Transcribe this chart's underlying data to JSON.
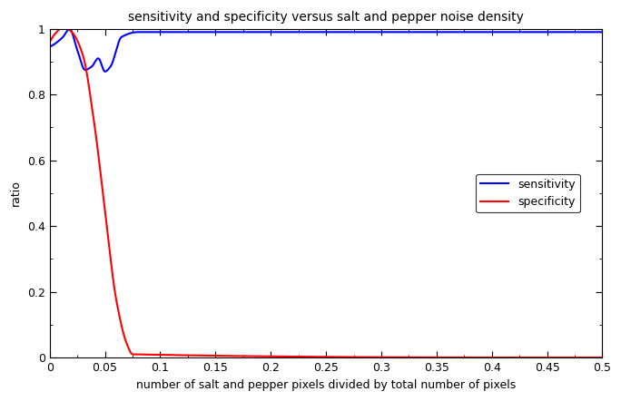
{
  "title": "sensitivity and specificity versus salt and pepper noise density",
  "xlabel": "number of salt and pepper pixels divided by total number of pixels",
  "ylabel": "ratio",
  "xlim": [
    0,
    0.5
  ],
  "ylim": [
    0,
    1.0
  ],
  "xticks": [
    0,
    0.05,
    0.1,
    0.15,
    0.2,
    0.25,
    0.3,
    0.35,
    0.4,
    0.45,
    0.5
  ],
  "yticks": [
    0,
    0.2,
    0.4,
    0.6,
    0.8,
    1.0
  ],
  "sensitivity_color": "#0000FF",
  "specificity_color": "#FF0000",
  "legend_labels": [
    "sensitivity",
    "specificity"
  ],
  "background_color": "#FFFFFF",
  "title_fontsize": 10,
  "axis_fontsize": 9,
  "tick_fontsize": 9,
  "linewidth": 1.5,
  "sens_keypoints_x": [
    0.0,
    0.005,
    0.012,
    0.018,
    0.025,
    0.032,
    0.038,
    0.044,
    0.05,
    0.055,
    0.065,
    0.08,
    0.5
  ],
  "sens_keypoints_y": [
    0.945,
    0.955,
    0.975,
    1.0,
    0.935,
    0.875,
    0.885,
    0.91,
    0.87,
    0.885,
    0.975,
    0.99,
    0.99
  ],
  "spec_keypoints_x": [
    0.0,
    0.005,
    0.01,
    0.015,
    0.02,
    0.03,
    0.04,
    0.05,
    0.06,
    0.07,
    0.075,
    0.5
  ],
  "spec_keypoints_y": [
    0.96,
    0.985,
    1.0,
    1.0,
    0.99,
    0.92,
    0.72,
    0.45,
    0.18,
    0.04,
    0.01,
    0.0
  ]
}
